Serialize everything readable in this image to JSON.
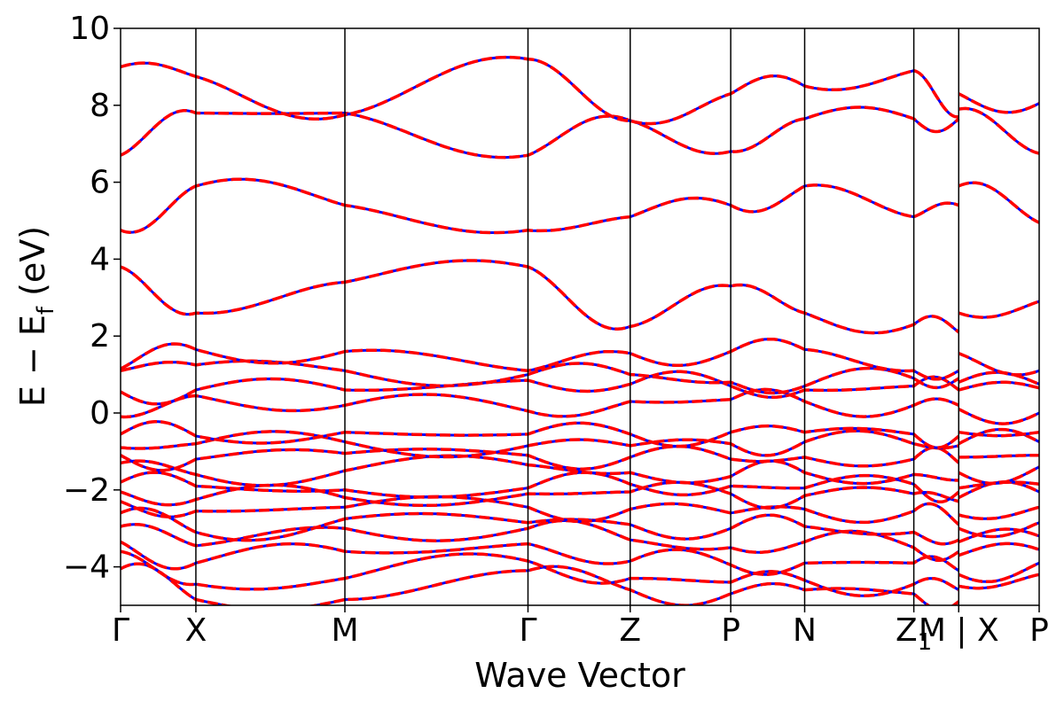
{
  "chart_data": {
    "type": "line",
    "title": "",
    "xlabel": "Wave Vector",
    "ylabel_main": "E − E",
    "ylabel_sub": "f",
    "ylabel_unit": " (eV)",
    "ylim": [
      -5,
      10
    ],
    "yticks": [
      -4,
      -2,
      0,
      2,
      4,
      6,
      8,
      10
    ],
    "ytick_labels": [
      "−4",
      "−2",
      "0",
      "2",
      "4",
      "6",
      "8",
      "10"
    ],
    "kpath": [
      {
        "label": "Γ",
        "x": 0.0
      },
      {
        "label": "X",
        "x": 0.716
      },
      {
        "label": "M",
        "x": 2.133
      },
      {
        "label": "Γ",
        "x": 3.874
      },
      {
        "label": "Z",
        "x": 4.846
      },
      {
        "label": "P",
        "x": 5.802
      },
      {
        "label": "N",
        "x": 6.505
      },
      {
        "label": "Z",
        "x": 7.543
      },
      {
        "label": "M | X",
        "x": 7.97
      },
      {
        "label": "P",
        "x": 8.735
      }
    ],
    "kpath_subscripts": [
      "",
      "",
      "",
      "",
      "",
      "",
      "",
      "1",
      "",
      ""
    ],
    "xlim": [
      0.0,
      8.735
    ],
    "segment_breaks": [
      7.97
    ],
    "series": [
      {
        "style": "solid",
        "color": "#0000ff"
      },
      {
        "style": "dashed",
        "color": "#ff0000"
      }
    ],
    "bands_at_nodes": [
      [
        -4.05,
        -4.85,
        -4.85,
        -4.1,
        -4.6,
        -4.7,
        -4.6,
        -4.7,
        -4.9,
        -4.5,
        -4.2
      ],
      [
        -3.6,
        -4.45,
        -4.3,
        -3.85,
        -4.3,
        -4.4,
        -4.35,
        -4.45,
        -4.6,
        -4.2,
        -3.9
      ],
      [
        -3.35,
        -3.9,
        -3.6,
        -3.4,
        -3.85,
        -3.95,
        -3.9,
        -3.9,
        -4.1,
        -3.7,
        -3.55
      ],
      [
        -2.95,
        -3.45,
        -3.0,
        -3.0,
        -3.3,
        -3.5,
        -3.35,
        -3.5,
        -3.6,
        -3.35,
        -3.2
      ],
      [
        -2.6,
        -3.1,
        -2.75,
        -2.85,
        -2.9,
        -3.0,
        -2.95,
        -3.1,
        -3.3,
        -3.0,
        -2.85
      ],
      [
        -2.3,
        -2.55,
        -2.45,
        -2.45,
        -2.5,
        -2.6,
        -2.5,
        -2.55,
        -2.9,
        -2.65,
        -2.45
      ],
      [
        -2.05,
        -2.25,
        -2.2,
        -2.1,
        -2.05,
        -2.1,
        -2.15,
        -2.1,
        -2.3,
        -2.2,
        -2.05
      ],
      [
        -1.8,
        -1.9,
        -2.0,
        -1.95,
        -1.85,
        -1.9,
        -1.95,
        -1.85,
        -2.05,
        -1.95,
        -1.85
      ],
      [
        -1.3,
        -1.6,
        -1.5,
        -1.35,
        -1.55,
        -1.65,
        -1.55,
        -1.6,
        -1.75,
        -1.55,
        -1.4
      ],
      [
        -1.1,
        -1.2,
        -1.05,
        -1.1,
        -1.15,
        -1.2,
        -1.15,
        -1.2,
        -1.3,
        -1.15,
        -1.1
      ],
      [
        -0.9,
        -0.8,
        -0.75,
        -0.85,
        -0.85,
        -0.8,
        -0.75,
        -0.8,
        -0.85,
        -0.8,
        -0.75
      ],
      [
        -0.55,
        -0.6,
        -0.5,
        -0.55,
        -0.55,
        -0.5,
        -0.5,
        -0.55,
        -0.6,
        -0.5,
        -0.5
      ],
      [
        -0.1,
        0.45,
        0.2,
        0.05,
        0.3,
        0.35,
        0.3,
        0.2,
        0.2,
        0.1,
        0.0
      ],
      [
        0.55,
        0.6,
        0.6,
        0.85,
        0.75,
        0.7,
        0.6,
        0.7,
        0.6,
        0.6,
        0.65
      ],
      [
        1.1,
        1.25,
        1.1,
        1.0,
        1.0,
        0.8,
        0.7,
        0.9,
        0.9,
        0.8,
        0.75
      ],
      [
        1.15,
        1.65,
        1.6,
        1.1,
        1.55,
        1.6,
        1.65,
        1.1,
        1.1,
        1.55,
        1.1
      ],
      [
        3.8,
        2.6,
        3.4,
        3.8,
        2.25,
        3.3,
        2.6,
        2.3,
        2.1,
        2.6,
        2.9
      ],
      [
        4.75,
        5.9,
        5.4,
        4.75,
        5.1,
        5.4,
        5.9,
        5.1,
        5.4,
        5.9,
        4.95
      ],
      [
        6.7,
        7.8,
        7.8,
        6.7,
        7.6,
        6.8,
        7.65,
        7.65,
        7.65,
        7.9,
        6.75
      ],
      [
        9.0,
        8.75,
        7.75,
        9.2,
        7.6,
        8.3,
        8.5,
        8.9,
        7.7,
        8.3,
        8.05
      ]
    ]
  }
}
